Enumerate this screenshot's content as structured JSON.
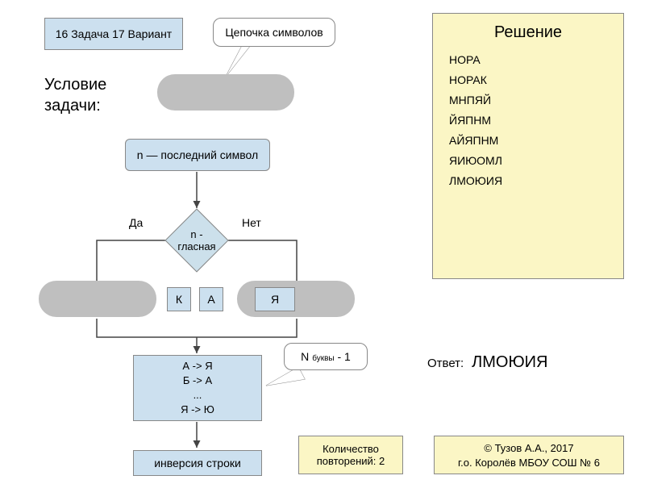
{
  "header": {
    "task_label": "16 Задача 17 Вариант",
    "chain_label": "Цепочка символов"
  },
  "condition_label": "Условие\nзадачи:",
  "flow": {
    "last_symbol": "n — последний символ",
    "decision": "n -\nгласная",
    "yes": "Да",
    "no": "Нет",
    "letter_k": "К",
    "letter_a": "А",
    "letter_ya": "Я",
    "transform": "А -> Я\nБ -> А\n...\nЯ -> Ю",
    "n_minus": "N",
    "n_minus_sub": "буквы",
    "n_minus_tail": " - 1",
    "inversion": "инверсия строки",
    "repeat": "Количество\nповторений: 2"
  },
  "solution": {
    "title": "Решение",
    "items": [
      "НОРА",
      "НОРАК",
      "МНПЯЙ",
      "ЙЯПНМ",
      "АЙЯПНМ",
      "ЯИЮОМЛ",
      "ЛМОЮИЯ"
    ]
  },
  "answer": {
    "label": "Ответ:",
    "value": "ЛМОЮИЯ"
  },
  "footer": {
    "copy": "© Тузов А.А., 2017",
    "school": "г.о. Королёв МБОУ СОШ № 6"
  },
  "colors": {
    "blue_fill": "#cce0ef",
    "yellow_fill": "#fbf6c5",
    "gray_fill": "#bfbfbf",
    "border": "#888888",
    "line": "#444444"
  }
}
